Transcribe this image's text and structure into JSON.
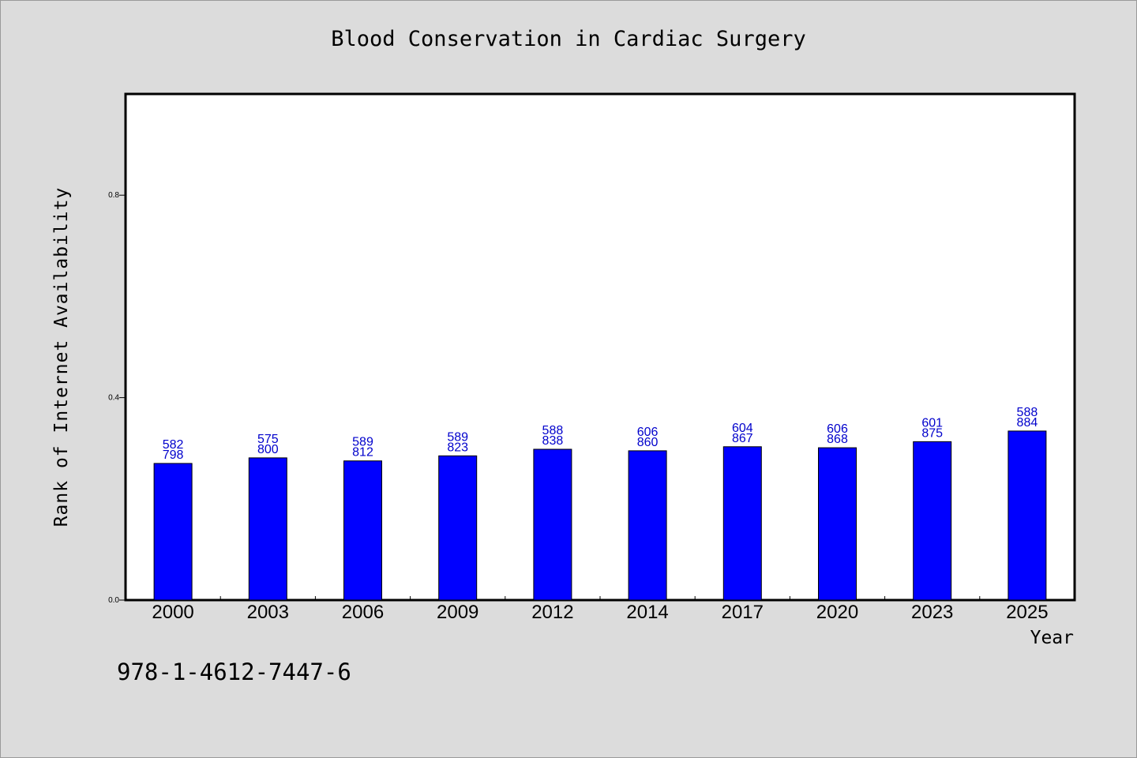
{
  "chart_data": {
    "type": "bar",
    "title": "Blood Conservation in Cardiac Surgery",
    "xlabel": "Year",
    "ylabel": "Rank of Internet Availability",
    "categories": [
      "2000",
      "2003",
      "2006",
      "2009",
      "2012",
      "2014",
      "2017",
      "2020",
      "2023",
      "2025"
    ],
    "values": [
      0.27,
      0.281,
      0.275,
      0.285,
      0.298,
      0.295,
      0.303,
      0.301,
      0.313,
      0.334
    ],
    "data_labels": [
      [
        "582",
        "798"
      ],
      [
        "575",
        "800"
      ],
      [
        "589",
        "812"
      ],
      [
        "589",
        "823"
      ],
      [
        "588",
        "838"
      ],
      [
        "606",
        "860"
      ],
      [
        "604",
        "867"
      ],
      [
        "606",
        "868"
      ],
      [
        "601",
        "875"
      ],
      [
        "588",
        "884"
      ]
    ],
    "ylim": [
      0,
      1.0
    ],
    "yticks": [
      0.0,
      0.4,
      0.8
    ],
    "ytick_labels": [
      "0.0",
      "0.4",
      "0.8"
    ],
    "grid": false,
    "colors": {
      "bar": "#0000ff",
      "label": "#0000cc",
      "background": "#dcdcdc",
      "plot_background": "#ffffff"
    }
  },
  "footer_text": "978-1-4612-7447-6"
}
